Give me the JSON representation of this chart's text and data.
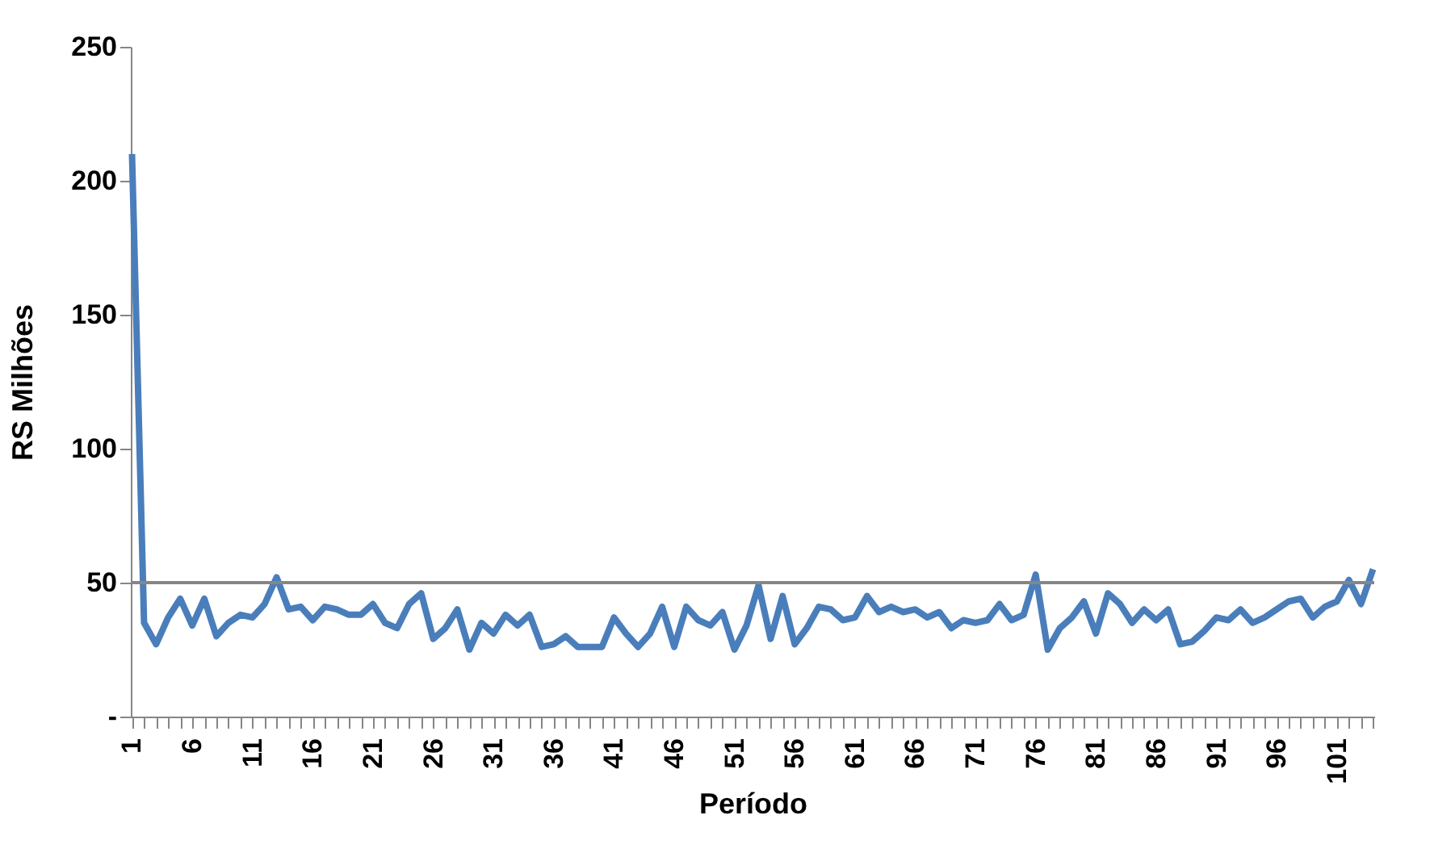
{
  "chart_data": {
    "type": "line",
    "xlabel": "Período",
    "ylabel": "RS Milhões",
    "categories": [
      "1",
      null,
      null,
      null,
      null,
      "6",
      null,
      null,
      null,
      null,
      "11",
      null,
      null,
      null,
      null,
      "16",
      null,
      null,
      null,
      null,
      "21",
      null,
      null,
      null,
      null,
      "26",
      null,
      null,
      null,
      null,
      "31",
      null,
      null,
      null,
      null,
      "36",
      null,
      null,
      null,
      null,
      "41",
      null,
      null,
      null,
      null,
      "46",
      null,
      null,
      null,
      null,
      "51",
      null,
      null,
      null,
      null,
      "56",
      null,
      null,
      null,
      null,
      "61",
      null,
      null,
      null,
      null,
      "66",
      null,
      null,
      null,
      null,
      "71",
      null,
      null,
      null,
      null,
      "76",
      null,
      null,
      null,
      null,
      "81",
      null,
      null,
      null,
      null,
      "86",
      null,
      null,
      null,
      null,
      "91",
      null,
      null,
      null,
      null,
      "96",
      null,
      null,
      null,
      null,
      "101",
      null,
      null,
      null
    ],
    "series": [
      {
        "color": "#4a7ebb",
        "values": [
          210,
          35,
          27,
          37,
          44,
          34,
          44,
          30,
          35,
          38,
          37,
          42,
          52,
          40,
          41,
          36,
          41,
          40,
          38,
          38,
          42,
          35,
          33,
          42,
          46,
          29,
          33,
          40,
          25,
          35,
          31,
          38,
          34,
          38,
          26,
          27,
          30,
          26,
          26,
          26,
          37,
          31,
          26,
          31,
          41,
          26,
          41,
          36,
          34,
          39,
          25,
          34,
          49,
          29,
          45,
          27,
          33,
          41,
          40,
          36,
          37,
          45,
          39,
          41,
          39,
          40,
          37,
          39,
          33,
          36,
          35,
          36,
          42,
          36,
          38,
          53,
          25,
          33,
          37,
          43,
          31,
          46,
          42,
          35,
          40,
          36,
          40,
          27,
          28,
          32,
          37,
          36,
          40,
          35,
          37,
          40,
          43,
          44,
          37,
          41,
          43,
          51,
          42,
          55
        ]
      }
    ],
    "ylim": [
      0,
      250
    ],
    "yticks": [
      {
        "value": 0,
        "label": "-"
      },
      50,
      100,
      150,
      200,
      250
    ],
    "ref_lines": [
      {
        "axis": "y",
        "value": 50,
        "color": "#868686"
      }
    ],
    "grid": false,
    "marker": "none",
    "line_style": "solid"
  }
}
